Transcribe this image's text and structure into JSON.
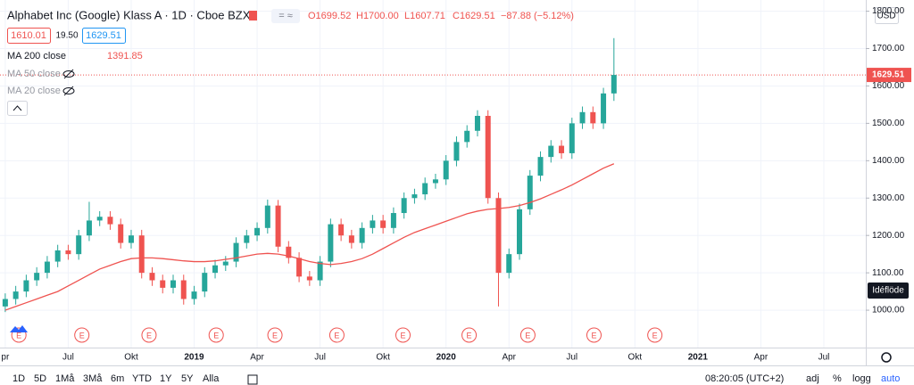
{
  "header": {
    "symbol": "Alphabet Inc (Google) Klass A · 1D · Cboe BZX",
    "bid": "1610.01",
    "spread": "19.50",
    "ask": "1629.51",
    "ohlc": [
      "O1699.52",
      "H1700.00",
      "L1607.71",
      "C1629.51",
      "−87.88 (−5.12%)"
    ]
  },
  "indicators": [
    {
      "name": "MA 200 close",
      "value": "1391.85"
    },
    {
      "name": "MA 50 close"
    },
    {
      "name": "MA 20 close"
    }
  ],
  "chart_data": {
    "type": "candlestick",
    "xlim": [
      -0.5,
      82
    ],
    "ylim": [
      900,
      1830
    ],
    "up_color": "#26a69a",
    "down_color": "#ef5350",
    "yticks": [
      {
        "value": 1000,
        "label": "1000.00"
      },
      {
        "value": 1100,
        "label": "1100.00"
      },
      {
        "value": 1200,
        "label": "1200.00"
      },
      {
        "value": 1300,
        "label": "1300.00"
      },
      {
        "value": 1400,
        "label": "1400.00"
      },
      {
        "value": 1500,
        "label": "1500.00"
      },
      {
        "value": 1600,
        "label": "1600.00"
      },
      {
        "value": 1700,
        "label": "1700.00"
      },
      {
        "value": 1800,
        "label": "1800.00"
      }
    ],
    "xticks": [
      {
        "value": 0,
        "label": "pr"
      },
      {
        "value": 6,
        "label": "Jul"
      },
      {
        "value": 12,
        "label": "Okt"
      },
      {
        "value": 18,
        "label": "2019"
      },
      {
        "value": 24,
        "label": "Apr"
      },
      {
        "value": 30,
        "label": "Jul"
      },
      {
        "value": 36,
        "label": "Okt"
      },
      {
        "value": 42,
        "label": "2020"
      },
      {
        "value": 48,
        "label": "Apr"
      },
      {
        "value": 54,
        "label": "Jul"
      },
      {
        "value": 60,
        "label": "Okt"
      },
      {
        "value": 66,
        "label": "2021"
      },
      {
        "value": 72,
        "label": "Apr"
      },
      {
        "value": 78,
        "label": "Jul"
      }
    ],
    "open": [
      1010,
      1030,
      1050,
      1080,
      1100,
      1130,
      1160,
      1150,
      1200,
      1240,
      1250,
      1230,
      1180,
      1200,
      1100,
      1080,
      1060,
      1080,
      1030,
      1050,
      1100,
      1120,
      1130,
      1180,
      1200,
      1220,
      1280,
      1170,
      1140,
      1090,
      1080,
      1130,
      1230,
      1200,
      1180,
      1220,
      1240,
      1220,
      1260,
      1300,
      1310,
      1340,
      1350,
      1400,
      1450,
      1480,
      1520,
      1300,
      1100,
      1150,
      1270,
      1360,
      1410,
      1440,
      1420,
      1500,
      1530,
      1500,
      1580
    ],
    "high": [
      1045,
      1065,
      1095,
      1115,
      1145,
      1175,
      1175,
      1215,
      1290,
      1265,
      1265,
      1245,
      1215,
      1215,
      1115,
      1095,
      1095,
      1095,
      1065,
      1115,
      1135,
      1145,
      1195,
      1215,
      1235,
      1296,
      1295,
      1185,
      1155,
      1105,
      1145,
      1245,
      1245,
      1215,
      1235,
      1255,
      1255,
      1275,
      1315,
      1325,
      1355,
      1365,
      1415,
      1465,
      1495,
      1535,
      1535,
      1315,
      1165,
      1285,
      1375,
      1425,
      1455,
      1455,
      1515,
      1545,
      1545,
      1595,
      1728
    ],
    "low": [
      995,
      1015,
      1035,
      1065,
      1085,
      1115,
      1135,
      1135,
      1185,
      1225,
      1215,
      1165,
      1165,
      1085,
      1065,
      1045,
      1045,
      1015,
      1015,
      1035,
      1085,
      1105,
      1115,
      1165,
      1185,
      1205,
      1155,
      1125,
      1075,
      1065,
      1065,
      1115,
      1185,
      1165,
      1165,
      1205,
      1205,
      1205,
      1245,
      1285,
      1295,
      1325,
      1335,
      1385,
      1435,
      1465,
      1285,
      1010,
      1085,
      1135,
      1255,
      1345,
      1395,
      1405,
      1405,
      1485,
      1485,
      1485,
      1560
    ],
    "close": [
      1030,
      1050,
      1080,
      1100,
      1130,
      1160,
      1150,
      1200,
      1240,
      1250,
      1230,
      1180,
      1200,
      1100,
      1080,
      1060,
      1080,
      1030,
      1050,
      1100,
      1120,
      1130,
      1180,
      1200,
      1220,
      1280,
      1170,
      1140,
      1090,
      1080,
      1130,
      1230,
      1200,
      1180,
      1220,
      1240,
      1220,
      1260,
      1300,
      1310,
      1340,
      1350,
      1400,
      1450,
      1480,
      1520,
      1300,
      1100,
      1150,
      1270,
      1360,
      1410,
      1440,
      1420,
      1500,
      1530,
      1500,
      1580,
      1629.51
    ],
    "series": [
      {
        "name": "MA 200 close",
        "color": "#ef5350",
        "values": [
          1000,
          1010,
          1020,
          1030,
          1040,
          1050,
          1065,
          1080,
          1095,
          1110,
          1120,
          1130,
          1138,
          1140,
          1140,
          1138,
          1135,
          1132,
          1130,
          1130,
          1132,
          1136,
          1140,
          1145,
          1150,
          1152,
          1150,
          1145,
          1138,
          1130,
          1125,
          1122,
          1125,
          1130,
          1138,
          1150,
          1165,
          1180,
          1195,
          1208,
          1218,
          1228,
          1238,
          1248,
          1258,
          1265,
          1270,
          1272,
          1275,
          1280,
          1288,
          1298,
          1310,
          1322,
          1335,
          1350,
          1365,
          1380,
          1391.85
        ]
      }
    ],
    "last_price": {
      "value": 1629.51,
      "label": "1629.51"
    },
    "earnings": [
      {
        "label": "E",
        "at": 1.3
      },
      {
        "label": "E",
        "at": 7.3
      },
      {
        "label": "E",
        "at": 13.7
      },
      {
        "label": "E",
        "at": 20.1
      },
      {
        "label": "E",
        "at": 25.7
      },
      {
        "label": "E",
        "at": 31.6
      },
      {
        "label": "E",
        "at": 37.9
      },
      {
        "label": "E",
        "at": 44.2
      },
      {
        "label": "E",
        "at": 49.8
      },
      {
        "label": "E",
        "at": 56.1
      },
      {
        "label": "E",
        "at": 61.9
      }
    ]
  },
  "axis_ui": {
    "currency": "USD",
    "ideas": "Idéflöde"
  },
  "toolbar": {
    "ranges": [
      "1D",
      "5D",
      "1Må",
      "3Må",
      "6m",
      "YTD",
      "1Y",
      "5Y",
      "Alla"
    ],
    "clock": "08:20:05 (UTC+2)",
    "options": [
      "adj",
      "%",
      "logg",
      "auto"
    ]
  }
}
